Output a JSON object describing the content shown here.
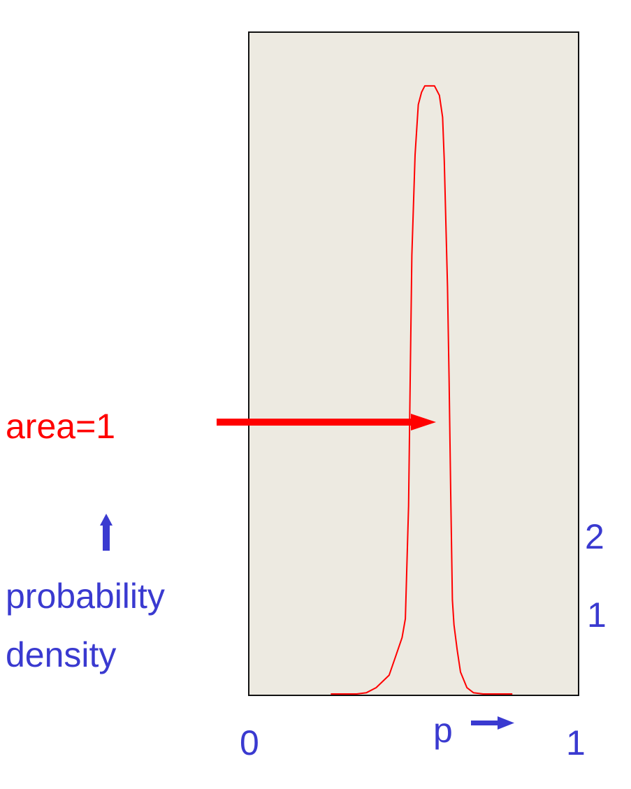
{
  "chart_data": {
    "type": "line",
    "title": "",
    "xlabel": "p",
    "ylabel": "probability density",
    "xlim": [
      0,
      1
    ],
    "ylim": [
      0,
      10
    ],
    "x_ticks": [
      "0",
      "1"
    ],
    "y_ticks": [
      "1",
      "2"
    ],
    "series": [
      {
        "x": [
          0.24,
          0.3,
          0.32,
          0.35,
          0.38,
          0.42,
          0.44,
          0.46,
          0.47,
          0.48,
          0.485,
          0.49,
          0.5,
          0.51,
          0.52,
          0.53,
          0.56,
          0.575,
          0.585,
          0.59,
          0.6,
          0.605,
          0.61,
          0.615,
          0.62,
          0.63,
          0.64,
          0.66,
          0.68,
          0.71,
          0.74,
          0.8
        ],
        "values": [
          0.0,
          0.0,
          0.0,
          0.02,
          0.1,
          0.3,
          0.6,
          0.9,
          1.2,
          3.0,
          5.0,
          7.0,
          8.6,
          9.4,
          9.6,
          9.7,
          9.7,
          9.55,
          9.2,
          8.5,
          6.5,
          5.0,
          3.2,
          1.5,
          1.1,
          0.7,
          0.35,
          0.1,
          0.02,
          0.0,
          0.0,
          0.0
        ]
      }
    ],
    "annotation": "area=1",
    "colors": {
      "curve": "#ff0000",
      "plot_bg": "#edeae1",
      "label_blue": "#3a3ad0",
      "annotation_red": "#ff0000"
    }
  }
}
